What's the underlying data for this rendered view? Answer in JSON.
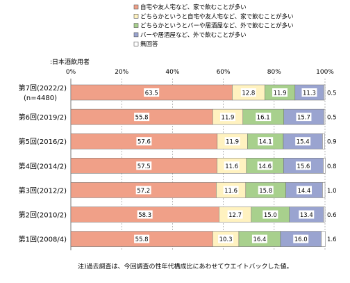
{
  "chart_data": {
    "type": "bar",
    "stacked": true,
    "orientation": "horizontal",
    "subtitle": ":日本酒飲用者",
    "note": "注)過去調査は、今回調査の性年代構成比にあわせてウエイトバックした値。",
    "categories": [
      [
        "第7回(2022/2)",
        "(n=4480)"
      ],
      [
        "第6回(2019/2)"
      ],
      [
        "第5回(2016/2)"
      ],
      [
        "第4回(2014/2)"
      ],
      [
        "第3回(2012/2)"
      ],
      [
        "第2回(2010/2)"
      ],
      [
        "第1回(2008/4)"
      ]
    ],
    "xlim": [
      0,
      100
    ],
    "x_ticks": [
      "0%",
      "20%",
      "40%",
      "60%",
      "80%",
      "100%"
    ],
    "legend_position": "top-right",
    "series": [
      {
        "name": "自宅や友人宅など、家で飲むことが多い",
        "color": "#f0a088",
        "values": [
          63.5,
          55.8,
          57.6,
          57.5,
          57.2,
          58.3,
          55.8
        ],
        "labels": [
          "63.5",
          "55.8",
          "57.6",
          "57.5",
          "57.2",
          "58.3",
          "55.8"
        ]
      },
      {
        "name": "どちらかというと自宅や友人宅など、家で飲むことが多い",
        "color": "#fff2c0",
        "values": [
          12.8,
          11.9,
          11.9,
          11.6,
          11.6,
          12.7,
          10.3
        ],
        "labels": [
          "12.8",
          "11.9",
          "11.9",
          "11.6",
          "11.6",
          "12.7",
          "10.3"
        ]
      },
      {
        "name": "どちらかというとバーや居酒屋など、外で飲むことが多い",
        "color": "#a8d08d",
        "values": [
          11.9,
          16.1,
          14.1,
          14.6,
          15.8,
          15.0,
          16.4
        ],
        "labels": [
          "11.9",
          "16.1",
          "14.1",
          "14.6",
          "15.8",
          "15.0",
          "16.4"
        ]
      },
      {
        "name": "バーや居酒屋など、外で飲むことが多い",
        "color": "#9aa4d0",
        "values": [
          11.3,
          15.7,
          15.4,
          15.6,
          14.4,
          13.4,
          16.0
        ],
        "labels": [
          "11.3",
          "15.7",
          "15.4",
          "15.6",
          "14.4",
          "13.4",
          "16.0"
        ]
      },
      {
        "name": "無回答",
        "color": "#ffffff",
        "values": [
          0.5,
          0.5,
          0.9,
          0.8,
          1.0,
          0.6,
          1.6
        ],
        "labels": [
          "0.5",
          "0.5",
          "0.9",
          "0.8",
          "1.0",
          "0.6",
          "1.6"
        ]
      }
    ]
  }
}
